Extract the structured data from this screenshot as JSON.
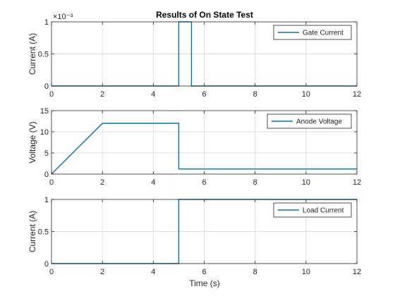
{
  "figure": {
    "title": "Results of On State Test",
    "xlabel": "Time (s)"
  },
  "colors": {
    "series": "#0072BD",
    "grid": "#DFDFDF",
    "axis": "#262626",
    "background": "#FFFFFF"
  },
  "chart_data": [
    {
      "type": "line",
      "title": "Results of On State Test",
      "xlabel": "",
      "ylabel": "Current (A)",
      "exponent_label": "×10⁻³",
      "xlim": [
        0,
        12
      ],
      "ylim": [
        0,
        1
      ],
      "xticks": [
        0,
        2,
        4,
        6,
        8,
        10,
        12
      ],
      "xtick_labels": [
        "0",
        "2",
        "4",
        "6",
        "8",
        "10",
        "12"
      ],
      "yticks": [
        0,
        0.5,
        1
      ],
      "ytick_labels": [
        "0",
        "0.5",
        "1"
      ],
      "grid": true,
      "legend_position": "top-right",
      "series": [
        {
          "name": "Gate Current",
          "x": [
            0,
            5,
            5,
            5.5,
            5.5,
            12
          ],
          "y": [
            0,
            0,
            1,
            1,
            0,
            0
          ]
        }
      ]
    },
    {
      "type": "line",
      "title": "",
      "xlabel": "",
      "ylabel": "Voltage (V)",
      "xlim": [
        0,
        12
      ],
      "ylim": [
        0,
        15
      ],
      "xticks": [
        0,
        2,
        4,
        6,
        8,
        10,
        12
      ],
      "xtick_labels": [
        "0",
        "2",
        "4",
        "6",
        "8",
        "10",
        "12"
      ],
      "yticks": [
        0,
        5,
        10,
        15
      ],
      "ytick_labels": [
        "0",
        "5",
        "10",
        "15"
      ],
      "grid": true,
      "legend_position": "top-right",
      "series": [
        {
          "name": "Anode Voltage",
          "x": [
            0,
            2,
            5,
            5,
            12
          ],
          "y": [
            0,
            12,
            12,
            1.2,
            1.2
          ]
        }
      ]
    },
    {
      "type": "line",
      "title": "",
      "xlabel": "Time (s)",
      "ylabel": "Current (A)",
      "xlim": [
        0,
        12
      ],
      "ylim": [
        0,
        1
      ],
      "xticks": [
        0,
        2,
        4,
        6,
        8,
        10,
        12
      ],
      "xtick_labels": [
        "0",
        "2",
        "4",
        "6",
        "8",
        "10",
        "12"
      ],
      "yticks": [
        0,
        0.5,
        1
      ],
      "ytick_labels": [
        "0",
        "0.5",
        "1"
      ],
      "grid": true,
      "legend_position": "top-right",
      "series": [
        {
          "name": "Load Current",
          "x": [
            0,
            5,
            5,
            12
          ],
          "y": [
            0,
            0,
            1,
            1
          ]
        }
      ]
    }
  ]
}
